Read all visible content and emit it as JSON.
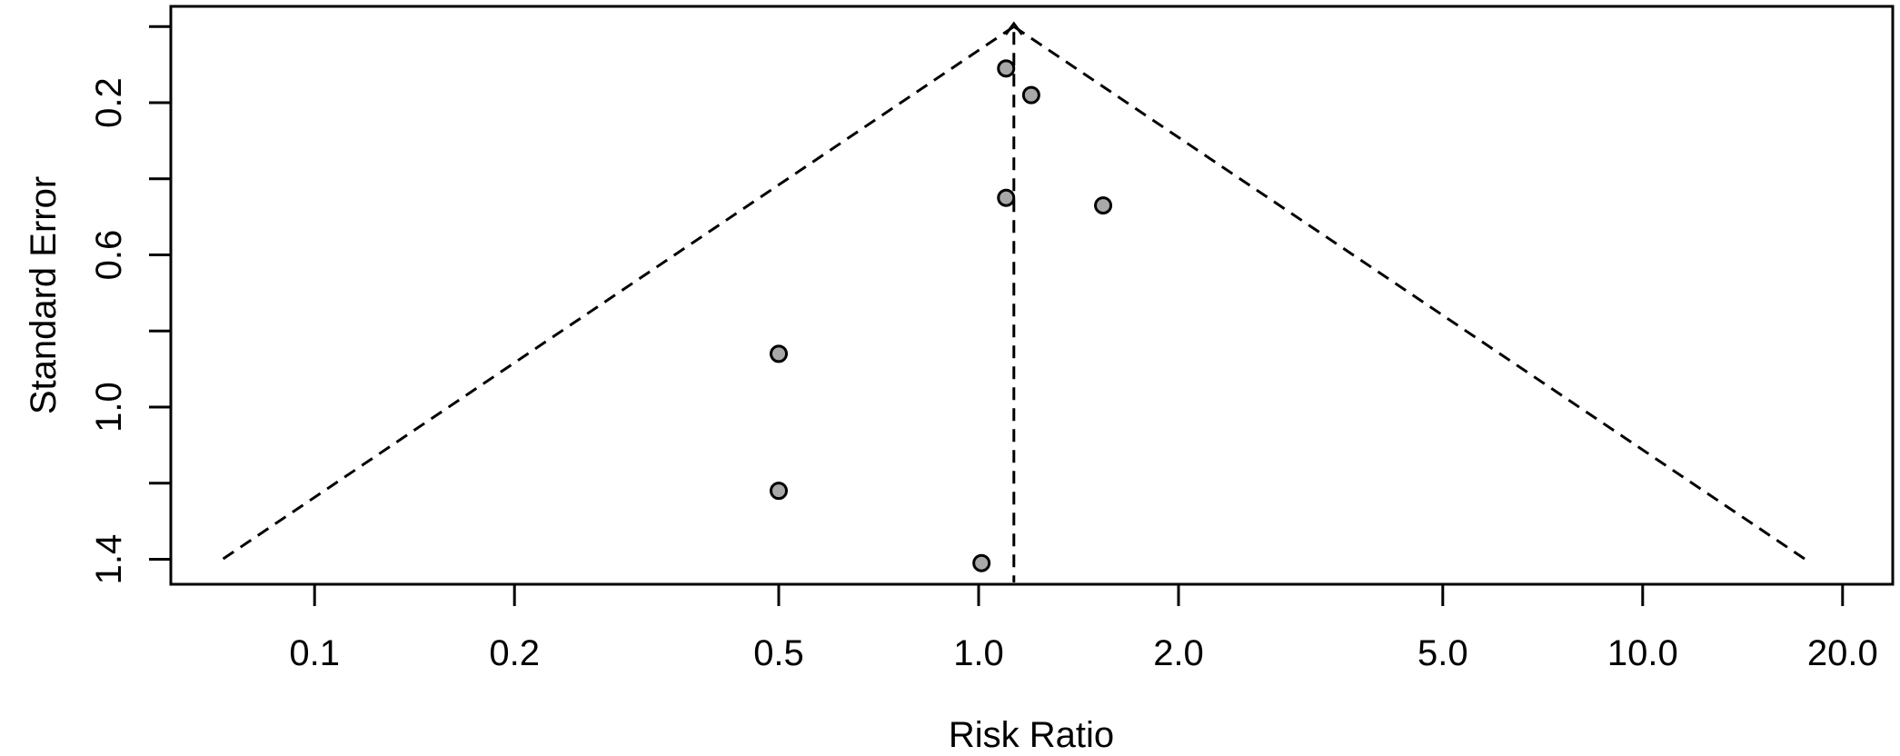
{
  "figure": {
    "background": "#ffffff"
  },
  "chart_data": {
    "type": "scatter",
    "chart_kind": "funnel-plot",
    "title": "",
    "xlabel": "Risk Ratio",
    "ylabel": "Standard Error",
    "x_scale": "log",
    "x_ticks": [
      0.1,
      0.2,
      0.5,
      1.0,
      2.0,
      5.0,
      10.0,
      20.0
    ],
    "x_tick_labels": [
      "0.1",
      "0.2",
      "0.5",
      "1.0",
      "2.0",
      "5.0",
      "10.0",
      "20.0"
    ],
    "y_ticks": [
      0,
      0.2,
      0.4,
      0.6,
      0.8,
      1.0,
      1.2,
      1.4
    ],
    "y_tick_labels": [
      "",
      "0.2",
      "",
      "0.6",
      "",
      "1.0",
      "",
      "1.4"
    ],
    "y_inverted": true,
    "x_range_approx": [
      0.06,
      23.8
    ],
    "y_range": [
      0,
      1.47
    ],
    "grid": false,
    "legend": false,
    "points": [
      {
        "risk_ratio": 1.1,
        "standard_error": 0.11
      },
      {
        "risk_ratio": 1.2,
        "standard_error": 0.18
      },
      {
        "risk_ratio": 1.1,
        "standard_error": 0.45
      },
      {
        "risk_ratio": 1.54,
        "standard_error": 0.47
      },
      {
        "risk_ratio": 0.5,
        "standard_error": 0.86
      },
      {
        "risk_ratio": 0.5,
        "standard_error": 1.22
      },
      {
        "risk_ratio": 1.01,
        "standard_error": 1.41
      }
    ],
    "pooled_estimate_rr": 1.13,
    "funnel_ci_z": 1.96,
    "funnel_base_se": 1.4,
    "line_style": "dashed",
    "colors": {
      "point_fill": "#a8a8a8",
      "point_stroke": "#000000",
      "line": "#000000",
      "background": "#ffffff"
    }
  }
}
